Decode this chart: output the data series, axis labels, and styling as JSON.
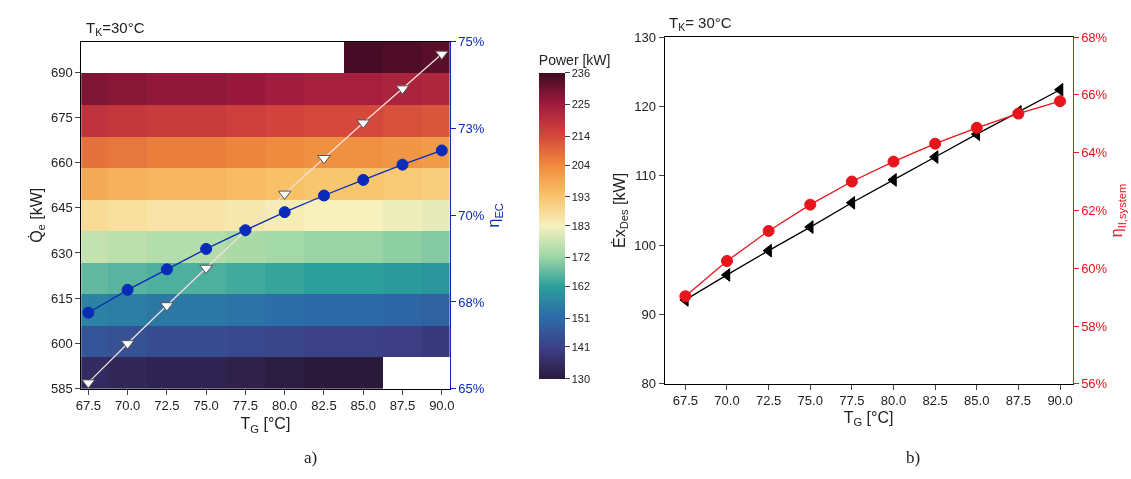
{
  "chart_data": [
    {
      "type": "line",
      "title": "T$_{K}$=30°C",
      "xlabel": "T$_{G}$ [°C]",
      "ylabel": "Q̇$_{e}$ [kW]",
      "y2label": "η$_{EC}$",
      "annotations": [
        "a)"
      ],
      "tick_labels": "y",
      "x": [
        67.5,
        70.0,
        72.5,
        75.0,
        77.5,
        80.0,
        82.5,
        85.0,
        87.5,
        90.0
      ],
      "xlim": [
        67.05,
        90.5
      ],
      "xticks": [
        67.5,
        70,
        72.5,
        75,
        77.5,
        80,
        82.5,
        85,
        87.5,
        90
      ],
      "ylim": [
        585,
        700
      ],
      "yticks": [
        585,
        600,
        615,
        630,
        645,
        660,
        675,
        690
      ],
      "y2lim": [
        65,
        75
      ],
      "y2ticks": [
        {
          "value": 65,
          "label": "65%"
        },
        {
          "value": 67.5,
          "label": "68%"
        },
        {
          "value": 70,
          "label": "70%"
        },
        {
          "value": 72.5,
          "label": "73%"
        },
        {
          "value": 75,
          "label": "75%"
        }
      ],
      "series": [
        {
          "color": "#ffffff",
          "marker": "triangle-down",
          "values": [
            587,
            600,
            612.6,
            625,
            637.3,
            649.6,
            661.4,
            673.2,
            684.5,
            696
          ]
        },
        {
          "color": "#0a2bb8",
          "marker": "circle",
          "axis": "y2",
          "values": [
            67.19,
            67.85,
            68.44,
            69.03,
            69.57,
            70.09,
            70.57,
            71.02,
            71.46,
            71.87
          ]
        }
      ]
    },
    {
      "type": "heatmap",
      "clabel": "Power [kW]",
      "tick_labels": "x",
      "categories": [
        "67.5",
        "70.0",
        "72.5",
        "75.0",
        "77.5",
        "80.0",
        "82.5",
        "85.0",
        "87.5",
        "90.0"
      ],
      "y_categories": [
        null,
        null,
        null,
        null,
        null,
        null,
        null,
        null,
        null,
        null,
        null
      ],
      "clim": [
        130,
        236
      ],
      "cticks": [
        130,
        141,
        151,
        162,
        172,
        183,
        193,
        204,
        214,
        225,
        236
      ],
      "cells": [
        [
          null,
          null,
          null,
          null,
          null,
          null,
          null,
          235,
          234,
          233
        ],
        [
          229,
          228,
          227,
          227,
          226,
          225,
          224,
          224,
          223,
          222
        ],
        [
          219,
          218,
          217,
          217,
          216,
          215,
          214,
          214,
          213,
          212
        ],
        [
          208,
          207,
          206,
          206,
          205,
          204,
          203,
          203,
          202,
          201
        ],
        [
          198,
          197,
          196,
          196,
          195,
          194,
          193,
          193,
          192,
          191
        ],
        [
          188,
          187,
          186,
          186,
          185,
          184,
          183,
          183,
          182,
          181
        ],
        [
          177,
          176,
          175,
          175,
          174,
          173,
          172,
          172,
          171,
          170
        ],
        [
          167,
          166,
          165,
          165,
          164,
          163,
          162,
          162,
          161,
          160
        ],
        [
          156,
          155,
          154,
          154,
          153,
          152,
          151,
          151,
          150,
          149
        ],
        [
          146,
          145,
          144,
          144,
          143,
          142,
          141,
          141,
          140,
          139
        ],
        [
          135,
          134,
          133,
          133,
          132,
          131,
          130,
          130,
          null,
          null
        ]
      ]
    },
    {
      "type": "line",
      "title": "T$_{K}$= 30°C",
      "xlabel": "T$_{G}$ [°C]",
      "ylabel": "Ėx$_{Des}$ [kW]",
      "y2label": "η$_{II,system}$",
      "annotations": [
        "b)"
      ],
      "x": [
        67.5,
        70.0,
        72.5,
        75.0,
        77.5,
        80.0,
        82.5,
        85.0,
        87.5,
        90.0
      ],
      "xlim": [
        66.25,
        90.75
      ],
      "xticks": [
        {
          "value": 67.5,
          "label": "67.5"
        },
        {
          "value": 70,
          "label": "70.0"
        },
        {
          "value": 72.5,
          "label": "72.5"
        },
        {
          "value": 75,
          "label": "75.0"
        },
        {
          "value": 77.5,
          "label": "77.5"
        },
        {
          "value": 80,
          "label": "80.0"
        },
        {
          "value": 82.5,
          "label": "82.5"
        },
        {
          "value": 85,
          "label": "85.0"
        },
        {
          "value": 87.5,
          "label": "87.5"
        },
        {
          "value": 90,
          "label": "90.0"
        }
      ],
      "ylim": [
        80,
        130
      ],
      "yticks": [
        80,
        90,
        100,
        110,
        120,
        130
      ],
      "y2lim": [
        56,
        68
      ],
      "y2ticks": [
        {
          "value": 56,
          "label": "56%"
        },
        {
          "value": 58,
          "label": "58%"
        },
        {
          "value": 60,
          "label": "60%"
        },
        {
          "value": 62,
          "label": "62%"
        },
        {
          "value": 64,
          "label": "64%"
        },
        {
          "value": 66,
          "label": "66%"
        },
        {
          "value": 68,
          "label": "68%"
        }
      ],
      "series": [
        {
          "color": "#000000",
          "marker": "triangle-left",
          "values": [
            92.1,
            95.7,
            99.2,
            102.6,
            106.1,
            109.4,
            112.7,
            116.0,
            119.2,
            122.4
          ]
        },
        {
          "color": "#e8141c",
          "marker": "circle",
          "axis": "y2",
          "values": [
            59.03,
            60.25,
            61.29,
            62.2,
            63.0,
            63.69,
            64.31,
            64.86,
            65.35,
            65.78
          ]
        }
      ]
    }
  ]
}
